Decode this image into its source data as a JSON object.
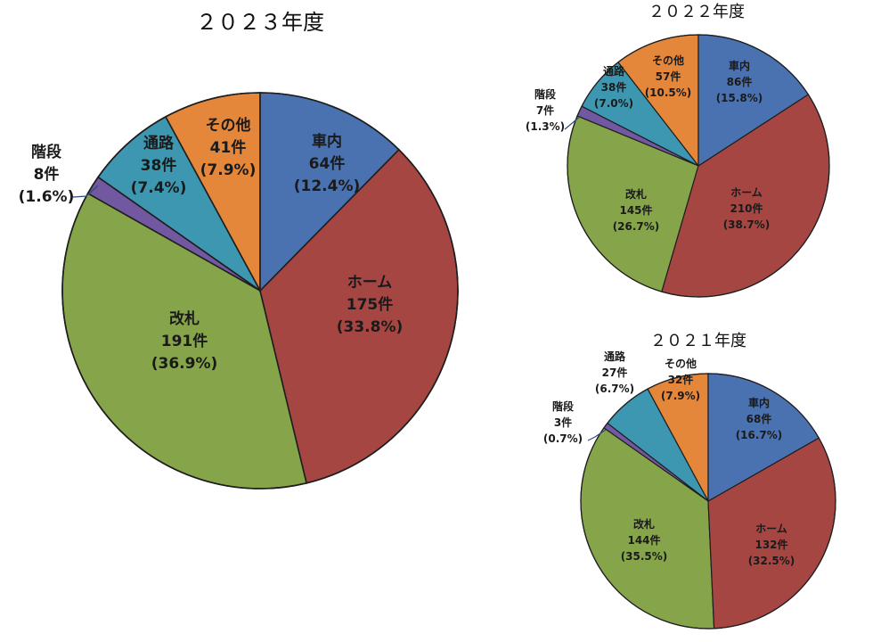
{
  "chart_data": [
    {
      "type": "pie",
      "title": "２０２３年度",
      "unit": "件",
      "slices": [
        {
          "name": "車内",
          "value": 64,
          "pct": "(12.4%)",
          "color": "#4a72b0"
        },
        {
          "name": "ホーム",
          "value": 175,
          "pct": "(33.8%)",
          "color": "#a64643"
        },
        {
          "name": "改札",
          "value": 191,
          "pct": "(36.9%)",
          "color": "#86a54a"
        },
        {
          "name": "階段",
          "value": 8,
          "pct": "(1.6%)",
          "color": "#7158a0"
        },
        {
          "name": "通路",
          "value": 38,
          "pct": "(7.4%)",
          "color": "#3d97b0"
        },
        {
          "name": "その他",
          "value": 41,
          "pct": "(7.9%)",
          "color": "#e5873a"
        }
      ]
    },
    {
      "type": "pie",
      "title": "２０２２年度",
      "unit": "件",
      "slices": [
        {
          "name": "車内",
          "value": 86,
          "pct": "(15.8%)",
          "color": "#4a72b0"
        },
        {
          "name": "ホーム",
          "value": 210,
          "pct": "(38.7%)",
          "color": "#a64643"
        },
        {
          "name": "改札",
          "value": 145,
          "pct": "(26.7%)",
          "color": "#86a54a"
        },
        {
          "name": "階段",
          "value": 7,
          "pct": "(1.3%)",
          "color": "#7158a0"
        },
        {
          "name": "通路",
          "value": 38,
          "pct": "(7.0%)",
          "color": "#3d97b0"
        },
        {
          "name": "その他",
          "value": 57,
          "pct": "(10.5%)",
          "color": "#e5873a"
        }
      ]
    },
    {
      "type": "pie",
      "title": "２０２１年度",
      "unit": "件",
      "slices": [
        {
          "name": "車内",
          "value": 68,
          "pct": "(16.7%)",
          "color": "#4a72b0"
        },
        {
          "name": "ホーム",
          "value": 132,
          "pct": "(32.5%)",
          "color": "#a64643"
        },
        {
          "name": "改札",
          "value": 144,
          "pct": "(35.5%)",
          "color": "#86a54a"
        },
        {
          "name": "階段",
          "value": 3,
          "pct": "(0.7%)",
          "color": "#7158a0"
        },
        {
          "name": "通路",
          "value": 27,
          "pct": "(6.7%)",
          "color": "#3d97b0"
        },
        {
          "name": "その他",
          "value": 32,
          "pct": "(7.9%)",
          "color": "#e5873a"
        }
      ]
    }
  ]
}
